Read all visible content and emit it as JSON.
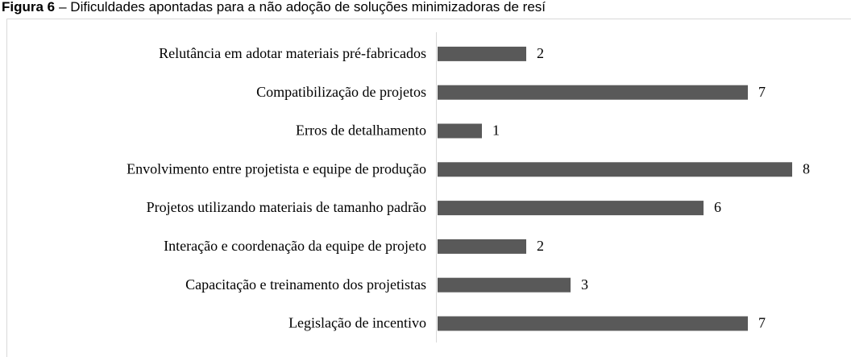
{
  "chart_data": {
    "type": "bar",
    "orientation": "horizontal",
    "figure_label": "Figura 6",
    "title": "– Dificuldades apontadas para a não adoção de soluções minimizadoras de resí",
    "categories": [
      "Relutância em adotar materiais pré-fabricados",
      "Compatibilização de projetos",
      "Erros de detalhamento",
      "Envolvimento entre projetista e equipe de produção",
      "Projetos utilizando materiais de tamanho padrão",
      "Interação e coordenação da equipe de projeto",
      "Capacitação e treinamento dos projetistas",
      "Legislação de incentivo"
    ],
    "values": [
      2,
      7,
      1,
      8,
      6,
      2,
      3,
      7
    ],
    "color": "#595959",
    "xlim": [
      0,
      8
    ]
  }
}
